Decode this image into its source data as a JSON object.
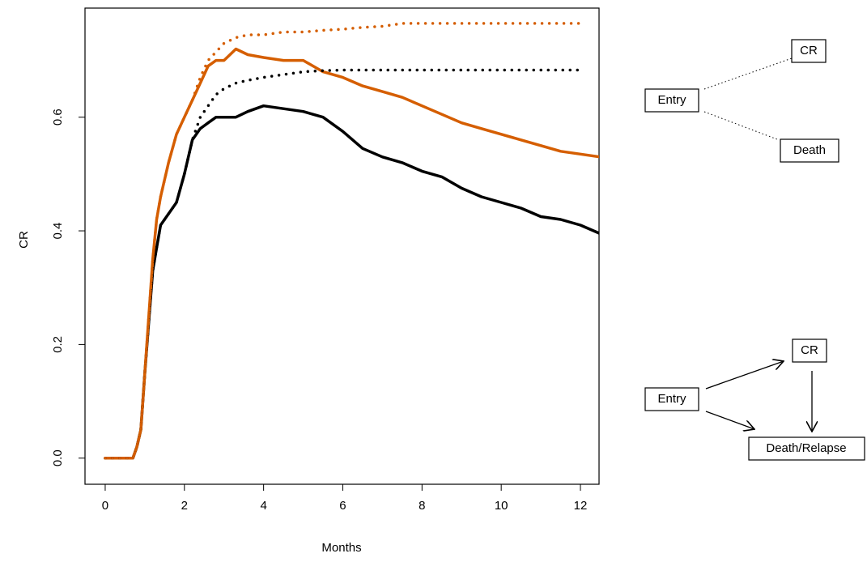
{
  "chart_data": {
    "type": "line",
    "xlabel": "Months",
    "ylabel": "CR",
    "x": [
      0,
      0.7,
      0.8,
      0.9,
      1.0,
      1.1,
      1.2,
      1.3,
      1.4,
      1.6,
      1.8,
      2.0,
      2.2,
      2.4,
      2.6,
      2.8,
      3.0,
      3.3,
      3.6,
      4.0,
      4.5,
      5.0,
      5.5,
      6.0,
      6.5,
      7.0,
      7.5,
      8.0,
      8.5,
      9.0,
      9.5,
      10.0,
      10.5,
      11.0,
      11.5,
      12.0,
      12.5
    ],
    "series": [
      {
        "color": "#000000",
        "dash": "solid",
        "values": [
          0,
          0,
          0.02,
          0.05,
          0.15,
          0.24,
          0.33,
          0.37,
          0.41,
          0.43,
          0.45,
          0.5,
          0.56,
          0.58,
          0.59,
          0.6,
          0.6,
          0.6,
          0.61,
          0.62,
          0.615,
          0.61,
          0.6,
          0.575,
          0.545,
          0.53,
          0.52,
          0.505,
          0.495,
          0.475,
          0.46,
          0.45,
          0.44,
          0.425,
          0.42,
          0.41,
          0.395
        ]
      },
      {
        "color": "#d55e00",
        "dash": "solid",
        "values": [
          0,
          0,
          0.02,
          0.05,
          0.15,
          0.25,
          0.35,
          0.42,
          0.46,
          0.52,
          0.57,
          0.6,
          0.63,
          0.66,
          0.69,
          0.7,
          0.7,
          0.72,
          0.71,
          0.705,
          0.7,
          0.7,
          0.68,
          0.67,
          0.655,
          0.645,
          0.635,
          0.62,
          0.605,
          0.59,
          0.58,
          0.57,
          0.56,
          0.55,
          0.54,
          0.535,
          0.53
        ]
      },
      {
        "color": "#000000",
        "dash": "dotted",
        "values": [
          0,
          0,
          0.02,
          0.05,
          0.15,
          0.24,
          0.33,
          0.37,
          0.41,
          0.43,
          0.45,
          0.5,
          0.56,
          0.6,
          0.62,
          0.64,
          0.65,
          0.66,
          0.665,
          0.67,
          0.675,
          0.68,
          0.682,
          0.683,
          0.683,
          0.683,
          0.683,
          0.683,
          0.683,
          0.683,
          0.683,
          0.683,
          0.683,
          0.683,
          0.683,
          0.683,
          null
        ]
      },
      {
        "color": "#d55e00",
        "dash": "dotted",
        "values": [
          0,
          0,
          0.02,
          0.05,
          0.15,
          0.25,
          0.35,
          0.42,
          0.46,
          0.52,
          0.57,
          0.6,
          0.63,
          0.67,
          0.7,
          0.715,
          0.73,
          0.74,
          0.745,
          0.745,
          0.75,
          0.75,
          0.753,
          0.755,
          0.758,
          0.76,
          0.765,
          0.765,
          0.765,
          0.765,
          0.765,
          0.765,
          0.765,
          0.765,
          0.765,
          0.765,
          null
        ]
      }
    ],
    "xlim": [
      -0.51,
      12.47
    ],
    "ylim": [
      -0.046,
      0.792
    ],
    "xticks": [
      0,
      2,
      4,
      6,
      8,
      10,
      12
    ],
    "yticks": [
      {
        "value": 0,
        "label": "0.0"
      },
      {
        "value": 0.2,
        "label": "0.2"
      },
      {
        "value": 0.4,
        "label": "0.4"
      },
      {
        "value": 0.6,
        "label": "0.6"
      }
    ]
  },
  "diagrams": [
    {
      "nodes": [
        {
          "label": "Entry"
        },
        {
          "label": "CR"
        },
        {
          "label": "Death"
        }
      ]
    },
    {
      "nodes": [
        {
          "label": "Entry"
        },
        {
          "label": "CR"
        },
        {
          "label": "Death/Relapse"
        }
      ]
    }
  ]
}
